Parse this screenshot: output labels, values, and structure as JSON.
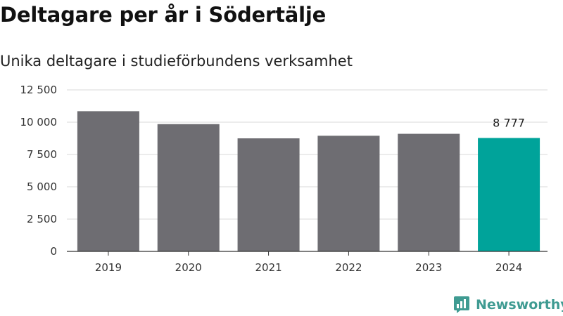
{
  "header": {
    "title": "Deltagare per år i Södertälje",
    "subtitle": "Unika deltagare i studieförbundens verksamhet"
  },
  "brand": {
    "name": "Newsworthy",
    "icon": "newsworthy-logo-icon",
    "color": "#3f9b92"
  },
  "colors": {
    "bar_default": "#6e6d72",
    "bar_highlight": "#00a39a",
    "grid": "#d9d9d9",
    "axis": "#333333"
  },
  "chart_data": {
    "type": "bar",
    "categories": [
      "2019",
      "2020",
      "2021",
      "2022",
      "2023",
      "2024"
    ],
    "values": [
      10850,
      9850,
      8750,
      8950,
      9100,
      8777
    ],
    "highlight_index": 5,
    "data_labels": [
      {
        "index": 5,
        "text": "8 777"
      }
    ],
    "title": "Deltagare per år i Södertälje",
    "subtitle": "Unika deltagare i studieförbundens verksamhet",
    "xlabel": "",
    "ylabel": "",
    "ylim": [
      0,
      12500
    ],
    "yticks": [
      0,
      2500,
      5000,
      7500,
      10000,
      12500
    ],
    "ytick_labels": [
      "0",
      "2 500",
      "5 000",
      "7 500",
      "10 000",
      "12 500"
    ],
    "grid": true,
    "legend": "none"
  }
}
